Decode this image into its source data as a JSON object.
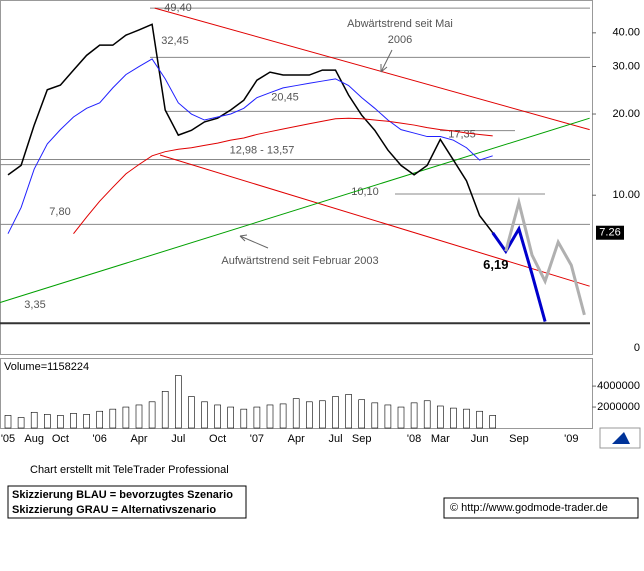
{
  "chart_data": [
    {
      "type": "line",
      "categories": [
        "'05",
        null,
        "Aug",
        null,
        "Oct",
        null,
        null,
        "'06",
        null,
        null,
        "Apr",
        null,
        null,
        "Jul",
        null,
        null,
        "Oct",
        null,
        null,
        "'07",
        null,
        null,
        "Apr",
        null,
        null,
        "Jul",
        null,
        "Sep",
        null,
        null,
        null,
        "'08",
        null,
        "Mar",
        null,
        null,
        "Jun",
        null,
        null,
        "Sep",
        null,
        null,
        null,
        "'09",
        null
      ],
      "series": [
        {
          "color": "#000000",
          "width": 1.5,
          "values": [
            11.9,
            12.9,
            18.2,
            24.6,
            25.6,
            29.1,
            33.0,
            36,
            36,
            39.2,
            41,
            43,
            20.7,
            16.7,
            17.4,
            18.7,
            19.3,
            20.7,
            22.5,
            26.7,
            28.6,
            27.9,
            27.9,
            27.9,
            29.1,
            29.1,
            23.5,
            19.8,
            17.4,
            14.7,
            12.9,
            11.9,
            12.9,
            16.1,
            13.5,
            11.3,
            8.4,
            7.26,
            null,
            null,
            null,
            null,
            null,
            null,
            null
          ]
        },
        {
          "color": "#2020ff",
          "width": 1,
          "values": [
            7.2,
            9.0,
            12.5,
            15.5,
            17.5,
            19.5,
            21,
            22,
            25,
            28,
            30,
            32,
            27,
            22,
            20,
            19,
            19.5,
            20,
            21,
            23,
            24,
            25,
            25.5,
            26,
            26.5,
            27,
            25.5,
            23,
            21,
            19,
            17.5,
            17,
            16.5,
            16.5,
            16,
            15,
            13.5,
            14,
            null,
            null,
            null,
            null,
            null,
            null,
            null
          ]
        },
        {
          "color": "#e00000",
          "width": 1,
          "values": [
            null,
            null,
            null,
            null,
            null,
            7.2,
            8.3,
            9.5,
            10.7,
            12,
            13,
            14,
            14.5,
            14.8,
            15.0,
            15.3,
            15.6,
            16,
            16.3,
            16.8,
            17.2,
            17.6,
            18,
            18.4,
            18.8,
            19.2,
            19.3,
            19.2,
            19,
            18.8,
            18.5,
            18.2,
            17.8,
            17.5,
            17.3,
            17.0,
            16.8,
            16.6,
            null,
            null,
            null,
            null,
            null,
            null,
            null
          ]
        },
        {
          "color": "#0000cc",
          "width": 3,
          "values": [
            null,
            null,
            null,
            null,
            null,
            null,
            null,
            null,
            null,
            null,
            null,
            null,
            null,
            null,
            null,
            null,
            null,
            null,
            null,
            null,
            null,
            null,
            null,
            null,
            null,
            null,
            null,
            null,
            null,
            null,
            null,
            null,
            null,
            null,
            null,
            null,
            null,
            7.26,
            6.19,
            7.5,
            5.1,
            3.4,
            null,
            null,
            null
          ],
          "value_labels": [
            null,
            null,
            null,
            null,
            null,
            null,
            null,
            null,
            null,
            null,
            null,
            null,
            null,
            null,
            null,
            null,
            null,
            null,
            null,
            null,
            null,
            null,
            null,
            null,
            null,
            null,
            null,
            null,
            null,
            null,
            null,
            null,
            null,
            null,
            null,
            null,
            null,
            null,
            "6,19",
            null,
            null,
            null,
            null,
            null,
            null
          ]
        },
        {
          "color": "#b0b0b0",
          "width": 3,
          "values": [
            null,
            null,
            null,
            null,
            null,
            null,
            null,
            null,
            null,
            null,
            null,
            null,
            null,
            null,
            null,
            null,
            null,
            null,
            null,
            null,
            null,
            null,
            null,
            null,
            null,
            null,
            null,
            null,
            null,
            null,
            null,
            null,
            null,
            null,
            null,
            null,
            null,
            null,
            6.2,
            9.4,
            6.0,
            4.8,
            6.7,
            5.5,
            3.6
          ]
        }
      ],
      "log_scale": true,
      "ylim": [
        2.6,
        51.6
      ],
      "yticks": [
        {
          "value": 40,
          "label": "40.00"
        },
        {
          "value": 30,
          "label": "30.00"
        },
        {
          "value": 20,
          "label": "20.00"
        },
        {
          "value": 10,
          "label": "10.00"
        }
      ],
      "axis_note": "0",
      "last_price": {
        "value": 7.26,
        "label": "7.26"
      },
      "levels": [
        {
          "values": [
            49.4
          ],
          "label": "49,40"
        },
        {
          "values": [
            32.45
          ],
          "label": "32,45"
        },
        {
          "values": [
            20.45
          ],
          "label": "20,45"
        },
        {
          "values": [
            17.35
          ],
          "label": "17,35"
        },
        {
          "values": [
            12.98,
            13.57
          ],
          "label": "12,98 - 13,57"
        },
        {
          "values": [
            10.1
          ],
          "label": "10,10"
        },
        {
          "values": [
            7.8
          ],
          "label": "7,80"
        },
        {
          "values": [
            3.35
          ],
          "label": "3,35"
        }
      ],
      "trendlines": [
        {
          "color": "#e00000",
          "from": [
            11.2,
            49.4
          ],
          "to": [
            44.4,
            17.5
          ]
        },
        {
          "color": "#e00000",
          "from": [
            11.6,
            14.1
          ],
          "to": [
            44.4,
            4.6
          ]
        },
        {
          "color": "#00a000",
          "from": [
            -0.6,
            4.0
          ],
          "to": [
            44.4,
            19.3
          ]
        }
      ],
      "annotations": [
        "Abwärtstrend seit Mai",
        "2006",
        "Aufwärtstrend seit Februar 2003"
      ]
    },
    {
      "type": "bar",
      "title": "Volume=1158224",
      "color": "#000000",
      "values": [
        1200000,
        1000000,
        1500000,
        1300000,
        1200000,
        1400000,
        1300000,
        1600000,
        1800000,
        2000000,
        2200000,
        2500000,
        3500000,
        5000000,
        3000000,
        2500000,
        2200000,
        2000000,
        1800000,
        2000000,
        2200000,
        2300000,
        2800000,
        2500000,
        2600000,
        3000000,
        3200000,
        2700000,
        2400000,
        2200000,
        2000000,
        2400000,
        2600000,
        2100000,
        1900000,
        1800000,
        1600000,
        1200000
      ],
      "ylim": [
        0,
        6300000
      ],
      "yticks": [
        4000000,
        2000000
      ]
    }
  ],
  "footer": {
    "credit": "Chart erstellt mit TeleTrader Professional",
    "notes": [
      "Skizzierung BLAU = bevorzugtes Szenario",
      "Skizzierung GRAU = Alternativszenario"
    ],
    "source": "© http://www.godmode-trader.de"
  }
}
